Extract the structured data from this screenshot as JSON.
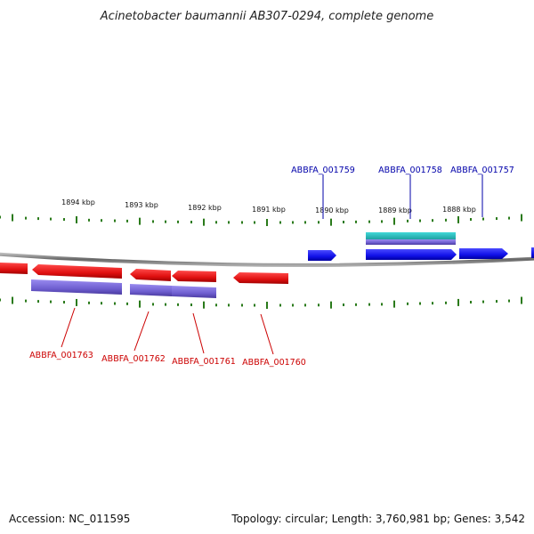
{
  "title": "Acinetobacter baumannii AB307-0294, complete genome",
  "footer": {
    "accession": "Accession: NC_011595",
    "summary": "Topology: circular; Length: 3,760,981 bp; Genes: 3,542"
  },
  "colors": {
    "forward_cds": "#1010ee",
    "reverse_cds": "#ee1010",
    "rna_forward": "#20bcbc",
    "rna_reverse": "#7f6fd8",
    "backbone": "#888888",
    "ticks": "#2a7a1a"
  },
  "ticks": [
    {
      "label": "1894 kbp"
    },
    {
      "label": "1893 kbp"
    },
    {
      "label": "1892 kbp"
    },
    {
      "label": "1891 kbp"
    },
    {
      "label": "1890 kbp"
    },
    {
      "label": "1889 kbp"
    },
    {
      "label": "1888 kbp"
    }
  ],
  "genes_forward": [
    {
      "name": "ABBFA_001759"
    },
    {
      "name": "ABBFA_001758"
    },
    {
      "name": "ABBFA_001757"
    }
  ],
  "genes_reverse": [
    {
      "name": "ABBFA_001763"
    },
    {
      "name": "ABBFA_001762"
    },
    {
      "name": "ABBFA_001761"
    },
    {
      "name": "ABBFA_001760"
    }
  ]
}
